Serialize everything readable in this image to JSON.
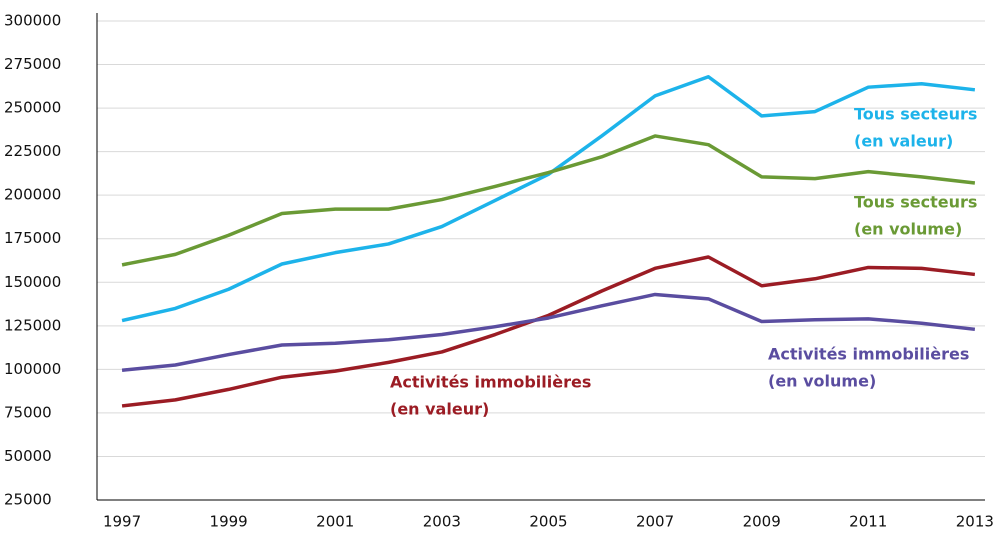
{
  "chart_data": {
    "type": "line",
    "x": [
      1997,
      1998,
      1999,
      2000,
      2001,
      2002,
      2003,
      2004,
      2005,
      2006,
      2007,
      2008,
      2009,
      2010,
      2011,
      2012,
      2013
    ],
    "xlim": [
      1996.53,
      2013.19
    ],
    "xticks": [
      1997,
      1999,
      2001,
      2003,
      2005,
      2007,
      2009,
      2011,
      2013
    ],
    "ylim": [
      25000,
      300000
    ],
    "yticks": [
      25000,
      50000,
      75000,
      100000,
      125000,
      150000,
      175000,
      200000,
      225000,
      250000,
      275000,
      300000
    ],
    "grid": true,
    "series": [
      {
        "name": "Tous secteurs (en valeur)",
        "color": "#1db3ea",
        "values": [
          128000,
          135000,
          146000,
          160500,
          167000,
          172000,
          182000,
          197000,
          212000,
          234000,
          257000,
          268000,
          245500,
          248000,
          262000,
          264000,
          260500
        ]
      },
      {
        "name": "Tous secteurs (en volume)",
        "color": "#6a9a35",
        "values": [
          160000,
          166000,
          177000,
          189500,
          192000,
          192000,
          197500,
          205000,
          213000,
          222000,
          234000,
          229000,
          210500,
          209500,
          213500,
          210500,
          207000
        ]
      },
      {
        "name": "Activités immobilières (en valeur)",
        "color": "#9b1c24",
        "values": [
          79000,
          82500,
          88500,
          95500,
          99000,
          104000,
          110000,
          120000,
          131000,
          145000,
          158000,
          164500,
          148000,
          152000,
          158500,
          158000,
          154500
        ]
      },
      {
        "name": "Activités immobilières (en volume)",
        "color": "#5a4da0",
        "values": [
          99500,
          102500,
          108500,
          114000,
          115000,
          117000,
          120000,
          124500,
          129500,
          136500,
          143000,
          140500,
          127500,
          128500,
          129000,
          126500,
          123000
        ]
      }
    ],
    "annotations": [
      {
        "lines": [
          "Tous secteurs",
          "(en valeur)"
        ]
      },
      {
        "lines": [
          "Tous secteurs",
          "(en volume)"
        ]
      },
      {
        "lines": [
          "Activités immobilières",
          "(en valeur)"
        ]
      },
      {
        "lines": [
          "Activités immobilières",
          "(en volume)"
        ]
      }
    ]
  }
}
